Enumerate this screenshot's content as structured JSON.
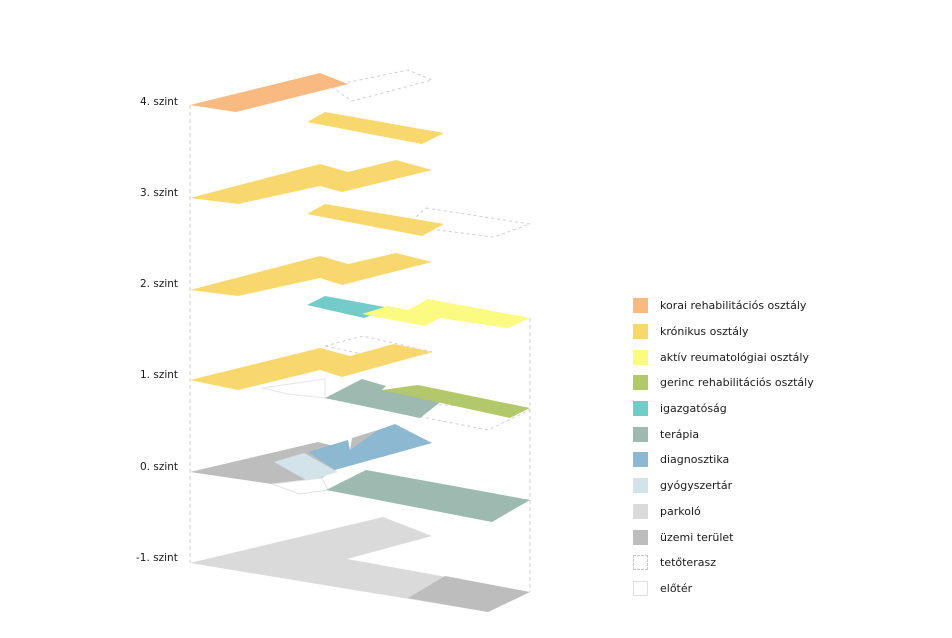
{
  "levels": [
    {
      "id": "lvl-4",
      "label": "4. szint"
    },
    {
      "id": "lvl-3",
      "label": "3. szint"
    },
    {
      "id": "lvl-2",
      "label": "2. szint"
    },
    {
      "id": "lvl-1",
      "label": "1. szint"
    },
    {
      "id": "lvl-0",
      "label": "0. szint"
    },
    {
      "id": "lvl-m1",
      "label": "-1. szint"
    }
  ],
  "legend": [
    {
      "key": "korai",
      "label": "korai rehabilitációs osztály",
      "color": "#f8ba80",
      "style": "fill"
    },
    {
      "key": "kronikus",
      "label": "krónikus osztály",
      "color": "#f8d86c",
      "style": "fill"
    },
    {
      "key": "aktiv",
      "label": "aktív reumatológiai osztály",
      "color": "#fbfb82",
      "style": "fill"
    },
    {
      "key": "gerinc",
      "label": "gerinc rehabilitációs osztály",
      "color": "#b2c86a",
      "style": "fill"
    },
    {
      "key": "igazgatosag",
      "label": "igazgatóság",
      "color": "#74ccca",
      "style": "fill"
    },
    {
      "key": "terapia",
      "label": "terápia",
      "color": "#9dbab0",
      "style": "fill"
    },
    {
      "key": "diagnosztika",
      "label": "diagnosztika",
      "color": "#8db8d2",
      "style": "fill"
    },
    {
      "key": "gyogyszertar",
      "label": "gyógyszertár",
      "color": "#d2e4ea",
      "style": "fill"
    },
    {
      "key": "parkolo",
      "label": "parkoló",
      "color": "#dadada",
      "style": "fill"
    },
    {
      "key": "uzemi",
      "label": "üzemi terület",
      "color": "#bdbdbd",
      "style": "fill"
    },
    {
      "key": "tetoterasz",
      "label": "tetőterasz",
      "color": "#c6c6c6",
      "style": "dashed"
    },
    {
      "key": "eloter",
      "label": "előtér",
      "color": "#dedede",
      "style": "outline"
    }
  ]
}
